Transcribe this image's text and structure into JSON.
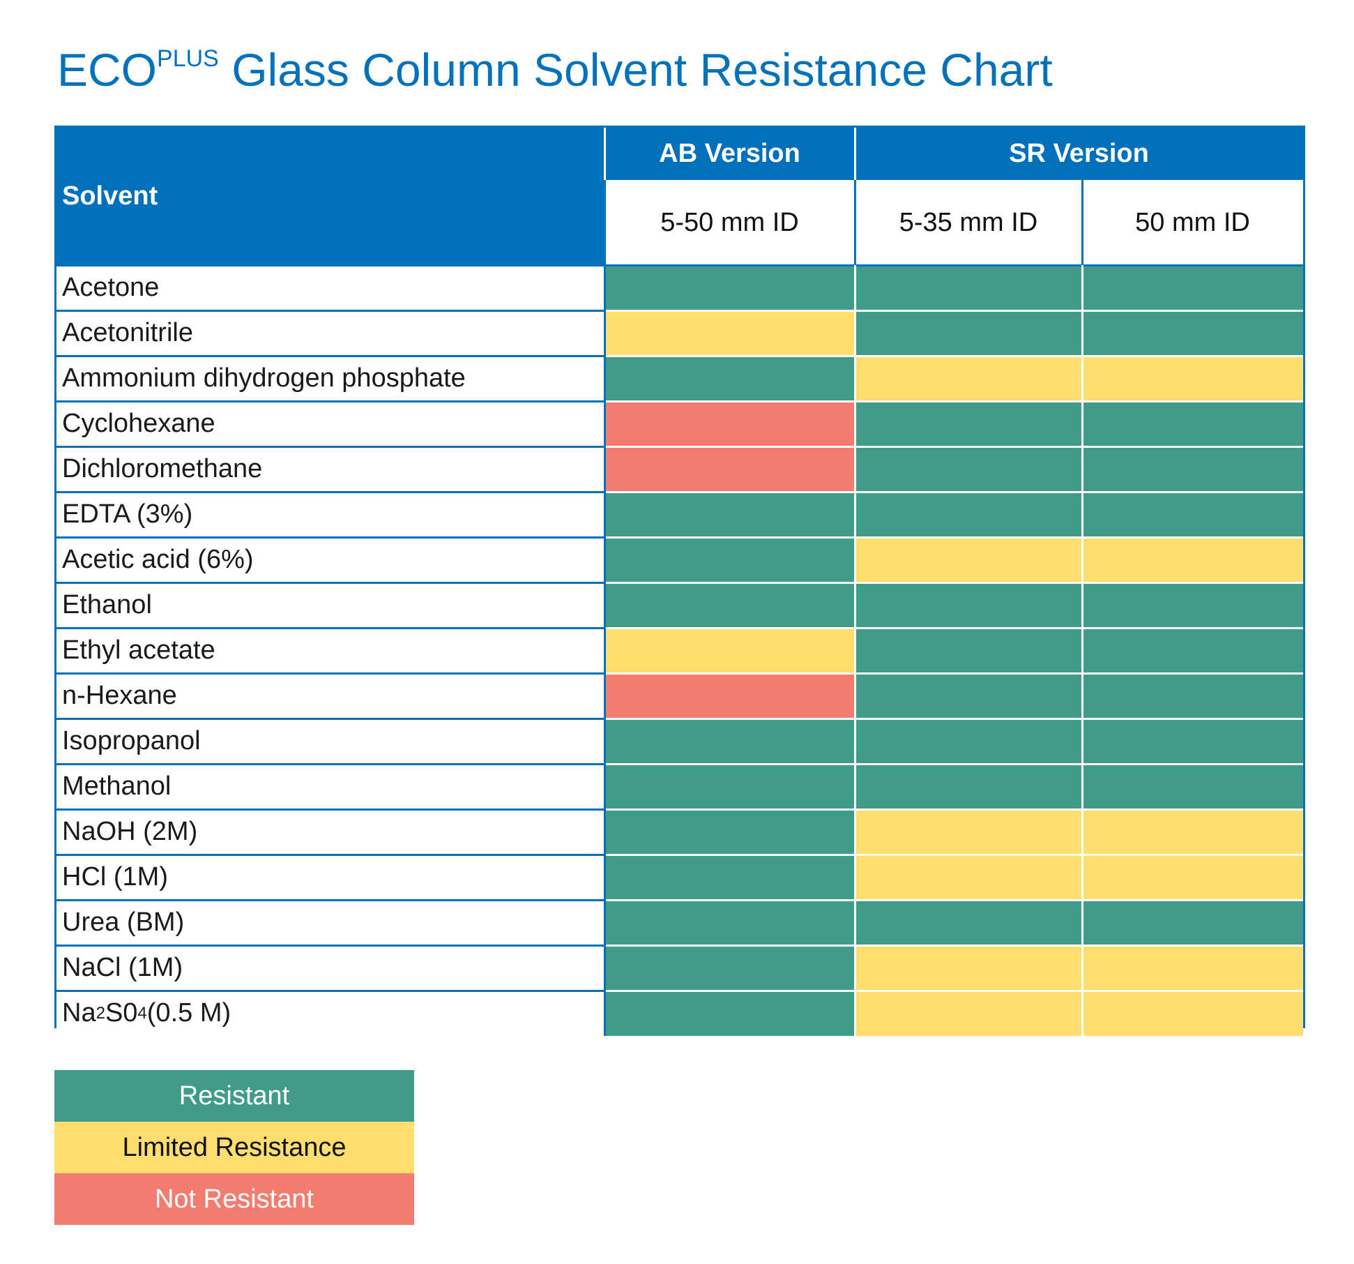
{
  "title": {
    "main": "ECO",
    "sup": "PLUS",
    "rest": " Glass Column Solvent Resistance Chart"
  },
  "colors": {
    "header_blue": "#0070bd",
    "resistant": "#409c88",
    "limited": "#ffdd6e",
    "not_resistant": "#f27c70"
  },
  "chart_data": {
    "type": "table",
    "title": "ECOPLUS Glass Column Solvent Resistance Chart",
    "header": {
      "solvent_label": "Solvent",
      "groups": [
        {
          "label": "AB Version",
          "columns": [
            "5-50 mm ID"
          ]
        },
        {
          "label": "SR Version",
          "columns": [
            "5-35 mm ID",
            "50 mm ID"
          ]
        }
      ]
    },
    "columns": [
      "AB Version 5-50 mm ID",
      "SR Version 5-35 mm ID",
      "SR Version 50 mm ID"
    ],
    "rows": [
      {
        "solvent": "Acetone",
        "values": [
          "R",
          "R",
          "R"
        ]
      },
      {
        "solvent": "Acetonitrile",
        "values": [
          "L",
          "R",
          "R"
        ]
      },
      {
        "solvent": "Ammonium dihydrogen phosphate",
        "values": [
          "R",
          "L",
          "L"
        ]
      },
      {
        "solvent": "Cyclohexane",
        "values": [
          "N",
          "R",
          "R"
        ]
      },
      {
        "solvent": "Dichloromethane",
        "values": [
          "N",
          "R",
          "R"
        ]
      },
      {
        "solvent": "EDTA (3%)",
        "values": [
          "R",
          "R",
          "R"
        ]
      },
      {
        "solvent": "Acetic acid (6%)",
        "values": [
          "R",
          "L",
          "L"
        ]
      },
      {
        "solvent": "Ethanol",
        "values": [
          "R",
          "R",
          "R"
        ]
      },
      {
        "solvent": "Ethyl acetate",
        "values": [
          "L",
          "R",
          "R"
        ]
      },
      {
        "solvent": "n-Hexane",
        "values": [
          "N",
          "R",
          "R"
        ]
      },
      {
        "solvent": "Isopropanol",
        "values": [
          "R",
          "R",
          "R"
        ]
      },
      {
        "solvent": "Methanol",
        "values": [
          "R",
          "R",
          "R"
        ]
      },
      {
        "solvent": "NaOH (2M)",
        "values": [
          "R",
          "L",
          "L"
        ]
      },
      {
        "solvent": "HCl (1M)",
        "values": [
          "R",
          "L",
          "L"
        ]
      },
      {
        "solvent": "Urea (BM)",
        "values": [
          "R",
          "R",
          "R"
        ]
      },
      {
        "solvent": "NaCl (1M)",
        "values": [
          "R",
          "L",
          "L"
        ]
      },
      {
        "solvent": "Na",
        "solvent_sub1": "2",
        "solvent_mid": "S0",
        "solvent_sub2": "4",
        "solvent_tail": " (0.5 M)",
        "values": [
          "R",
          "L",
          "L"
        ]
      }
    ],
    "legend": [
      {
        "key": "R",
        "label": "Resistant"
      },
      {
        "key": "L",
        "label": "Limited Resistance"
      },
      {
        "key": "N",
        "label": "Not Resistant"
      }
    ]
  }
}
